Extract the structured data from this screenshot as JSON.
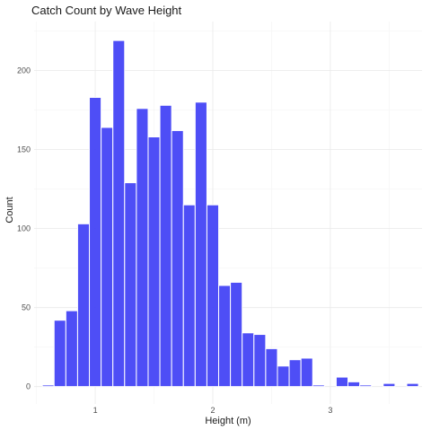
{
  "chart_data": {
    "type": "bar",
    "title": "Catch Count by Wave Height",
    "xlabel": "Height (m)",
    "ylabel": "Count",
    "bar_color": "#4444f5",
    "grid": true,
    "xlim": [
      0.48,
      3.78
    ],
    "ylim": [
      -11,
      231
    ],
    "x_ticks": [
      1,
      2,
      3
    ],
    "x_tick_labels": [
      "1",
      "2",
      "3"
    ],
    "y_ticks": [
      0,
      50,
      100,
      150,
      200
    ],
    "y_tick_labels": [
      "0",
      "50",
      "100",
      "150",
      "200"
    ],
    "binwidth": 0.1,
    "bins": [
      {
        "x": 0.6,
        "count": 1
      },
      {
        "x": 0.7,
        "count": 42
      },
      {
        "x": 0.8,
        "count": 48
      },
      {
        "x": 0.9,
        "count": 103
      },
      {
        "x": 1.0,
        "count": 183
      },
      {
        "x": 1.1,
        "count": 164
      },
      {
        "x": 1.2,
        "count": 219
      },
      {
        "x": 1.3,
        "count": 129
      },
      {
        "x": 1.4,
        "count": 176
      },
      {
        "x": 1.5,
        "count": 158
      },
      {
        "x": 1.6,
        "count": 178
      },
      {
        "x": 1.7,
        "count": 162
      },
      {
        "x": 1.8,
        "count": 115
      },
      {
        "x": 1.9,
        "count": 180
      },
      {
        "x": 2.0,
        "count": 115
      },
      {
        "x": 2.1,
        "count": 64
      },
      {
        "x": 2.2,
        "count": 66
      },
      {
        "x": 2.3,
        "count": 34
      },
      {
        "x": 2.4,
        "count": 33
      },
      {
        "x": 2.5,
        "count": 24
      },
      {
        "x": 2.6,
        "count": 13
      },
      {
        "x": 2.7,
        "count": 17
      },
      {
        "x": 2.8,
        "count": 18
      },
      {
        "x": 2.9,
        "count": 1
      },
      {
        "x": 3.1,
        "count": 6
      },
      {
        "x": 3.2,
        "count": 3
      },
      {
        "x": 3.3,
        "count": 1
      },
      {
        "x": 3.5,
        "count": 2
      },
      {
        "x": 3.7,
        "count": 2
      }
    ]
  }
}
